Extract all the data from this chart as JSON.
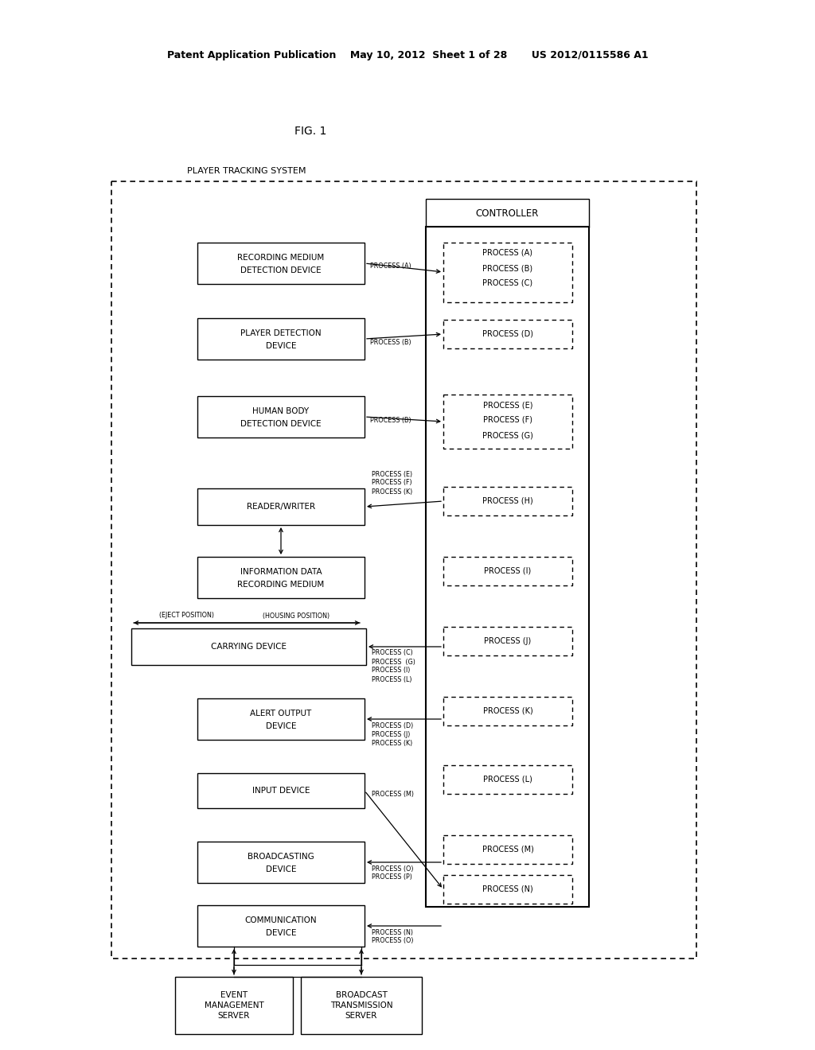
{
  "header": "Patent Application Publication    May 10, 2012  Sheet 1 of 28       US 2012/0115586 A1",
  "fig_label": "FIG. 1",
  "system_label": "PLAYER TRACKING SYSTEM",
  "bg": "#ffffff",
  "figw": 10.24,
  "figh": 13.2,
  "dpi": 100
}
